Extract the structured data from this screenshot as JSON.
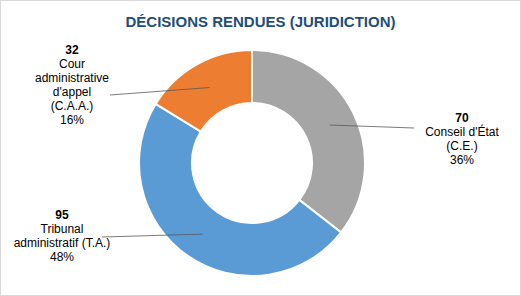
{
  "chart_data": {
    "type": "donut",
    "title": "DÉCISIONS RENDUES (JURIDICTION)",
    "categories": [
      "Conseil d'État\n(C.E.)",
      "Tribunal\nadministratif (T.A.)",
      "Cour\nadministrative\nd'appel\n(C.A.A.)"
    ],
    "values": [
      70,
      95,
      32
    ],
    "percentages": [
      {
        "value": 36,
        "label": "36%"
      },
      {
        "value": 48,
        "label": "48%"
      },
      {
        "value": 16,
        "label": "16%"
      }
    ],
    "colors": [
      "#a5a5a5",
      "#5b9bd5",
      "#ed7d31"
    ],
    "data_labels": true
  }
}
